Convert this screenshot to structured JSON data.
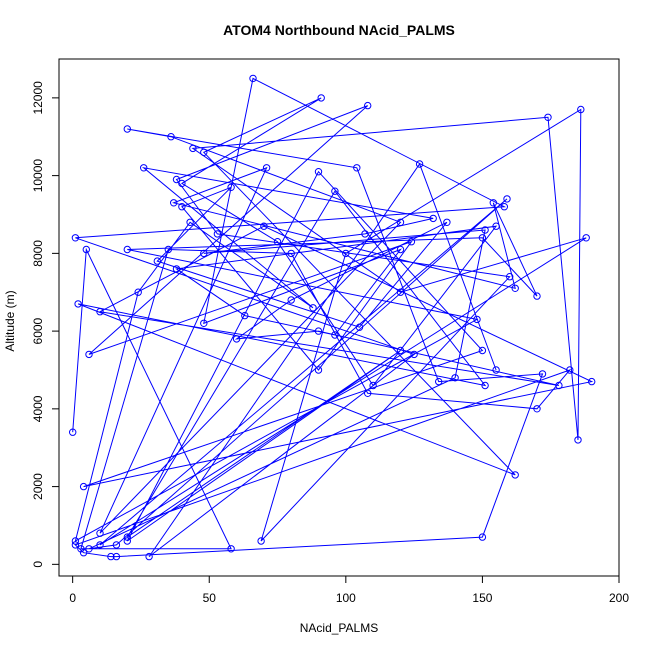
{
  "chart_data": {
    "type": "line",
    "title": "ATOM4 Northbound NAcid_PALMS",
    "xlabel": "NAcid_PALMS",
    "ylabel": "Altitude (m)",
    "xlim": [
      -5,
      200
    ],
    "ylim": [
      -300,
      13000
    ],
    "x_ticks": [
      0,
      50,
      100,
      150,
      200
    ],
    "y_ticks": [
      0,
      2000,
      4000,
      6000,
      8000,
      10000,
      12000
    ],
    "grid": false,
    "legend": "none",
    "line_color": "#0000ff",
    "marker": "open-circle",
    "series": [
      {
        "x": [
          0,
          5,
          58,
          3,
          35,
          80,
          108,
          170,
          182,
          1,
          4,
          14,
          16,
          150,
          172,
          134,
          104,
          20,
          36,
          120,
          10,
          71,
          37,
          162,
          154,
          170,
          150,
          20,
          148,
          1,
          24,
          43,
          88,
          26,
          132,
          107,
          48,
          151,
          140,
          6,
          16,
          159,
          10,
          188,
          120,
          44,
          174,
          185,
          186,
          100,
          69,
          160,
          53,
          38,
          108,
          6,
          124,
          90,
          40,
          58,
          31,
          105,
          137,
          80,
          60,
          90,
          178,
          10,
          70,
          190,
          4,
          150,
          90,
          20,
          120,
          20,
          96,
          151,
          2,
          162,
          48,
          91,
          40,
          75,
          110,
          155,
          38,
          63,
          96,
          120,
          48,
          66,
          158,
          1,
          125,
          28,
          127,
          155
        ],
        "y": [
          3400,
          8100,
          400,
          400,
          8100,
          8000,
          4400,
          4000,
          5000,
          500,
          300,
          200,
          200,
          700,
          4900,
          4700,
          10200,
          11200,
          11000,
          8800,
          800,
          10200,
          9300,
          7100,
          9300,
          6900,
          8400,
          8100,
          6300,
          600,
          7000,
          8800,
          6600,
          10200,
          8900,
          8500,
          8000,
          8600,
          4800,
          400,
          500,
          9400,
          500,
          8400,
          7000,
          10700,
          11500,
          3200,
          11700,
          8000,
          600,
          7400,
          8500,
          9900,
          11800,
          5400,
          8300,
          5000,
          9200,
          9700,
          7800,
          6100,
          8800,
          6800,
          5800,
          6000,
          4600,
          6500,
          8700,
          4700,
          2000,
          5500,
          10100,
          600,
          5500,
          700,
          9600,
          4600,
          6700,
          2300,
          10600,
          12000,
          9800,
          8300,
          4600,
          8700,
          7600,
          6400,
          5900,
          8100,
          6200,
          12500,
          9200,
          8400,
          5400,
          200,
          10300,
          5000
        ]
      }
    ]
  }
}
